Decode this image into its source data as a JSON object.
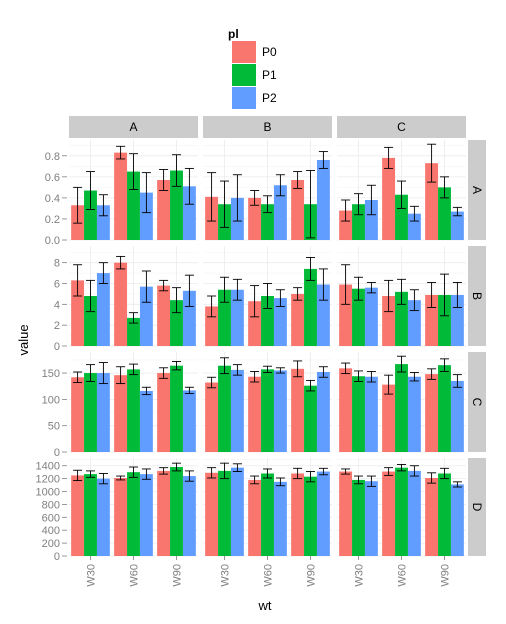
{
  "chart_data": {
    "type": "bar",
    "xlabel": "wt",
    "ylabel": "value",
    "legend": {
      "title": "pl",
      "placement": "top",
      "entries": [
        {
          "name": "P0",
          "color": "#F8766D"
        },
        {
          "name": "P1",
          "color": "#00BA38"
        },
        {
          "name": "P2",
          "color": "#619CFF"
        }
      ]
    },
    "grid": true,
    "columns": [
      "A",
      "B",
      "C"
    ],
    "categories": [
      "W30",
      "W60",
      "W90"
    ],
    "rows": [
      {
        "name": "A",
        "ylim": [
          0,
          0.95
        ],
        "ticks": [
          0.0,
          0.2,
          0.4,
          0.6,
          0.8
        ],
        "tick_labels": [
          "0.0",
          "0.2",
          "0.4",
          "0.6",
          "0.8"
        ],
        "panels": [
          {
            "values": [
              [
                0.33,
                0.47,
                0.33
              ],
              [
                0.83,
                0.65,
                0.45
              ],
              [
                0.57,
                0.66,
                0.51
              ]
            ],
            "errors": [
              [
                0.17,
                0.18,
                0.1
              ],
              [
                0.06,
                0.17,
                0.19
              ],
              [
                0.1,
                0.15,
                0.17
              ]
            ]
          },
          {
            "values": [
              [
                0.41,
                0.34,
                0.4
              ],
              [
                0.4,
                0.34,
                0.52
              ],
              [
                0.57,
                0.34,
                0.76
              ]
            ],
            "errors": [
              [
                0.23,
                0.22,
                0.22
              ],
              [
                0.07,
                0.08,
                0.1
              ],
              [
                0.08,
                0.32,
                0.08
              ]
            ]
          },
          {
            "values": [
              [
                0.28,
                0.34,
                0.38
              ],
              [
                0.78,
                0.43,
                0.25
              ],
              [
                0.73,
                0.5,
                0.27
              ]
            ],
            "errors": [
              [
                0.1,
                0.1,
                0.14
              ],
              [
                0.1,
                0.13,
                0.07
              ],
              [
                0.18,
                0.1,
                0.04
              ]
            ]
          }
        ]
      },
      {
        "name": "B",
        "ylim": [
          0,
          9.6
        ],
        "ticks": [
          0,
          2,
          4,
          6,
          8
        ],
        "tick_labels": [
          "0",
          "2",
          "4",
          "6",
          "8"
        ],
        "panels": [
          {
            "values": [
              [
                6.3,
                4.8,
                7.0
              ],
              [
                8.0,
                2.7,
                5.7
              ],
              [
                5.8,
                4.4,
                5.3
              ]
            ],
            "errors": [
              [
                1.5,
                1.5,
                1.0
              ],
              [
                0.6,
                0.5,
                1.5
              ],
              [
                0.5,
                1.2,
                1.5
              ]
            ]
          },
          {
            "values": [
              [
                3.8,
                5.4,
                5.4
              ],
              [
                4.3,
                4.8,
                4.6
              ],
              [
                5.0,
                7.4,
                5.9
              ]
            ],
            "errors": [
              [
                1.0,
                1.2,
                1.0
              ],
              [
                1.5,
                1.2,
                0.8
              ],
              [
                0.6,
                1.1,
                1.5
              ]
            ]
          },
          {
            "values": [
              [
                5.9,
                5.5,
                5.6
              ],
              [
                4.8,
                5.2,
                4.4
              ],
              [
                4.9,
                4.9,
                4.9
              ]
            ],
            "errors": [
              [
                1.9,
                1.1,
                0.5
              ],
              [
                1.5,
                1.2,
                1.0
              ],
              [
                1.2,
                2.0,
                1.2
              ]
            ]
          }
        ]
      },
      {
        "name": "C",
        "ylim": [
          0,
          190
        ],
        "ticks": [
          0,
          50,
          100,
          150
        ],
        "tick_labels": [
          "0",
          "50",
          "100",
          "150"
        ],
        "panels": [
          {
            "values": [
              [
                142,
                150,
                150
              ],
              [
                146,
                157,
                116
              ],
              [
                150,
                164,
                117
              ]
            ],
            "errors": [
              [
                10,
                16,
                20
              ],
              [
                16,
                10,
                7
              ],
              [
                10,
                8,
                6
              ]
            ]
          },
          {
            "values": [
              [
                132,
                164,
                156
              ],
              [
                143,
                157,
                155
              ],
              [
                158,
                126,
                152
              ]
            ],
            "errors": [
              [
                10,
                15,
                10
              ],
              [
                10,
                6,
                5
              ],
              [
                15,
                10,
                10
              ]
            ]
          },
          {
            "values": [
              [
                159,
                144,
                143
              ],
              [
                128,
                167,
                143
              ],
              [
                148,
                165,
                135
              ]
            ],
            "errors": [
              [
                10,
                10,
                10
              ],
              [
                18,
                15,
                8
              ],
              [
                10,
                12,
                12
              ]
            ]
          }
        ]
      },
      {
        "name": "D",
        "ylim": [
          0,
          1520
        ],
        "ticks": [
          0,
          200,
          400,
          600,
          800,
          1000,
          1200,
          1400
        ],
        "tick_labels": [
          "0",
          "200",
          "400",
          "600",
          "800",
          "1000",
          "1200",
          "1400"
        ],
        "panels": [
          {
            "values": [
              [
                1250,
                1270,
                1200
              ],
              [
                1210,
                1300,
                1270
              ],
              [
                1320,
                1380,
                1240
              ]
            ],
            "errors": [
              [
                80,
                50,
                80
              ],
              [
                30,
                80,
                80
              ],
              [
                50,
                60,
                80
              ]
            ]
          },
          {
            "values": [
              [
                1290,
                1320,
                1370
              ],
              [
                1180,
                1280,
                1150
              ],
              [
                1280,
                1230,
                1310
              ]
            ],
            "errors": [
              [
                80,
                120,
                60
              ],
              [
                60,
                70,
                60
              ],
              [
                80,
                80,
                50
              ]
            ]
          },
          {
            "values": [
              [
                1310,
                1180,
                1160
              ],
              [
                1310,
                1370,
                1320
              ],
              [
                1210,
                1280,
                1110
              ]
            ],
            "errors": [
              [
                40,
                60,
                80
              ],
              [
                60,
                50,
                80
              ],
              [
                80,
                80,
                40
              ]
            ]
          }
        ]
      }
    ]
  }
}
